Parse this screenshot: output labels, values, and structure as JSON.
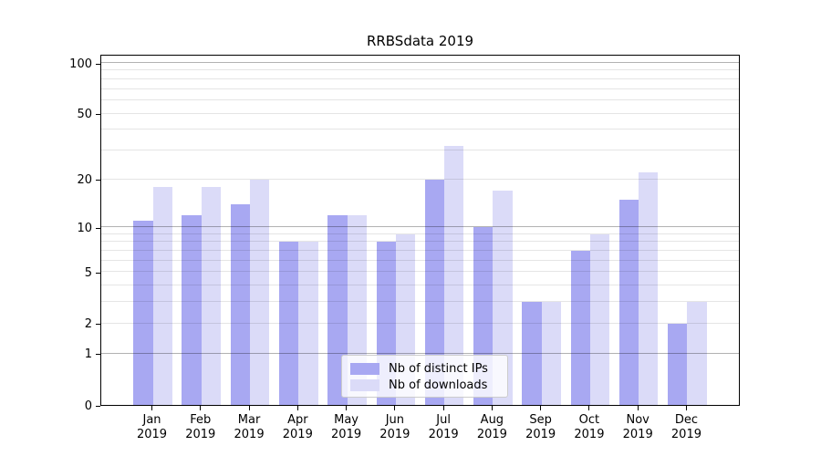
{
  "chart_data": {
    "type": "bar",
    "title": "RRBSdata 2019",
    "categories": [
      "Jan",
      "Feb",
      "Mar",
      "Apr",
      "May",
      "Jun",
      "Jul",
      "Aug",
      "Sep",
      "Oct",
      "Nov",
      "Dec"
    ],
    "category_year_suffix": "2019",
    "series": [
      {
        "name": "Nb of distinct IPs",
        "color": "#a8a8f2",
        "values": [
          11,
          12,
          14,
          8,
          12,
          8,
          20,
          10,
          3,
          7,
          15,
          2
        ]
      },
      {
        "name": "Nb of downloads",
        "color": "#dbdbf8",
        "values": [
          18,
          18,
          20,
          8,
          12,
          9,
          32,
          17,
          3,
          9,
          22,
          3
        ]
      }
    ],
    "yscale": "log1p",
    "ylim": [
      0,
      113
    ],
    "yticks": [
      0,
      1,
      2,
      5,
      10,
      20,
      50,
      100
    ],
    "major_gridlines": [
      1,
      10,
      100
    ],
    "minor_gridlines": [
      2,
      3,
      4,
      5,
      6,
      7,
      8,
      9,
      20,
      30,
      40,
      50,
      60,
      70,
      80,
      90
    ],
    "grid": "on",
    "legend_position": "lower center",
    "background_color": "#ffffff",
    "axis_color": "#000000"
  }
}
